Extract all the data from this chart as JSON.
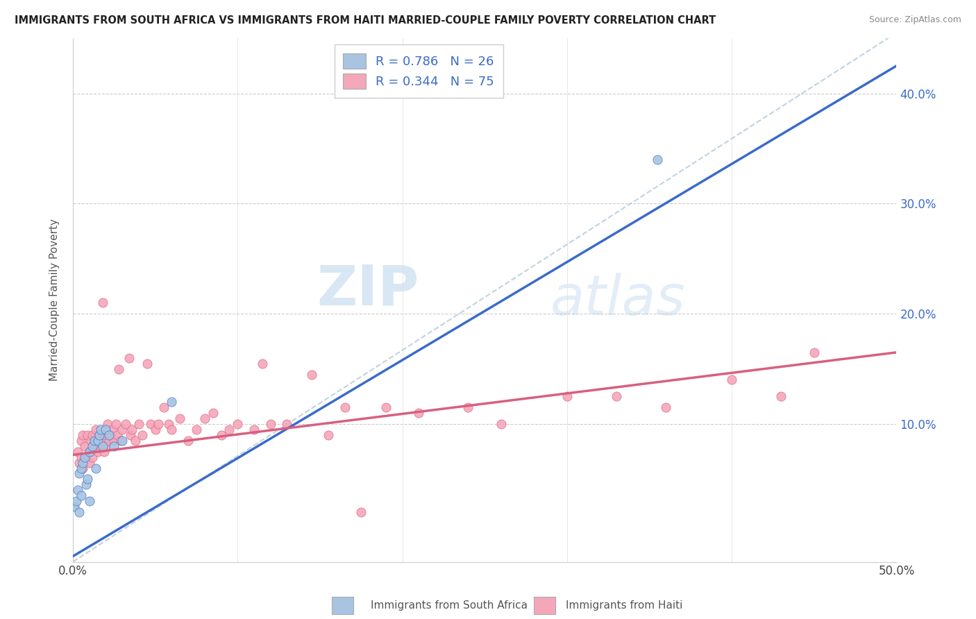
{
  "title": "IMMIGRANTS FROM SOUTH AFRICA VS IMMIGRANTS FROM HAITI MARRIED-COUPLE FAMILY POVERTY CORRELATION CHART",
  "source": "Source: ZipAtlas.com",
  "ylabel": "Married-Couple Family Poverty",
  "xlim": [
    0.0,
    0.5
  ],
  "ylim": [
    -0.025,
    0.45
  ],
  "color_sa": "#a8c4e0",
  "color_haiti": "#f4a7b9",
  "line_color_sa": "#3a6bc9",
  "line_color_haiti": "#d95f7f",
  "dashed_line_color": "#b0c8d8",
  "background_color": "#ffffff",
  "watermark_zip": "ZIP",
  "watermark_atlas": "atlas",
  "sa_x": [
    0.001,
    0.002,
    0.003,
    0.004,
    0.004,
    0.005,
    0.005,
    0.006,
    0.007,
    0.008,
    0.009,
    0.01,
    0.01,
    0.012,
    0.013,
    0.014,
    0.015,
    0.016,
    0.017,
    0.018,
    0.02,
    0.022,
    0.025,
    0.03,
    0.06,
    0.355
  ],
  "sa_y": [
    0.025,
    0.03,
    0.04,
    0.055,
    0.02,
    0.06,
    0.035,
    0.065,
    0.07,
    0.045,
    0.05,
    0.075,
    0.03,
    0.08,
    0.085,
    0.06,
    0.085,
    0.09,
    0.095,
    0.08,
    0.095,
    0.09,
    0.08,
    0.085,
    0.12,
    0.34
  ],
  "haiti_x": [
    0.003,
    0.004,
    0.005,
    0.005,
    0.006,
    0.006,
    0.007,
    0.008,
    0.009,
    0.01,
    0.01,
    0.011,
    0.012,
    0.012,
    0.013,
    0.014,
    0.015,
    0.015,
    0.016,
    0.017,
    0.018,
    0.018,
    0.019,
    0.02,
    0.02,
    0.021,
    0.022,
    0.023,
    0.024,
    0.025,
    0.026,
    0.027,
    0.028,
    0.029,
    0.03,
    0.032,
    0.034,
    0.035,
    0.036,
    0.038,
    0.04,
    0.042,
    0.045,
    0.047,
    0.05,
    0.052,
    0.055,
    0.058,
    0.06,
    0.065,
    0.07,
    0.075,
    0.08,
    0.085,
    0.09,
    0.095,
    0.1,
    0.11,
    0.115,
    0.12,
    0.13,
    0.145,
    0.155,
    0.165,
    0.175,
    0.19,
    0.21,
    0.24,
    0.26,
    0.3,
    0.33,
    0.36,
    0.4,
    0.43,
    0.45
  ],
  "haiti_y": [
    0.075,
    0.065,
    0.07,
    0.085,
    0.06,
    0.09,
    0.08,
    0.07,
    0.09,
    0.075,
    0.065,
    0.085,
    0.07,
    0.09,
    0.08,
    0.095,
    0.085,
    0.075,
    0.09,
    0.08,
    0.21,
    0.085,
    0.075,
    0.09,
    0.08,
    0.1,
    0.085,
    0.09,
    0.095,
    0.085,
    0.1,
    0.09,
    0.15,
    0.085,
    0.095,
    0.1,
    0.16,
    0.09,
    0.095,
    0.085,
    0.1,
    0.09,
    0.155,
    0.1,
    0.095,
    0.1,
    0.115,
    0.1,
    0.095,
    0.105,
    0.085,
    0.095,
    0.105,
    0.11,
    0.09,
    0.095,
    0.1,
    0.095,
    0.155,
    0.1,
    0.1,
    0.145,
    0.09,
    0.115,
    0.02,
    0.115,
    0.11,
    0.115,
    0.1,
    0.125,
    0.125,
    0.115,
    0.14,
    0.125,
    0.165
  ],
  "sa_line_x": [
    0.0,
    0.5
  ],
  "sa_line_y": [
    -0.02,
    0.425
  ],
  "haiti_line_x": [
    0.0,
    0.5
  ],
  "haiti_line_y": [
    0.072,
    0.165
  ],
  "dash_line_x": [
    0.0,
    0.5
  ],
  "dash_line_y": [
    -0.025,
    0.455
  ]
}
